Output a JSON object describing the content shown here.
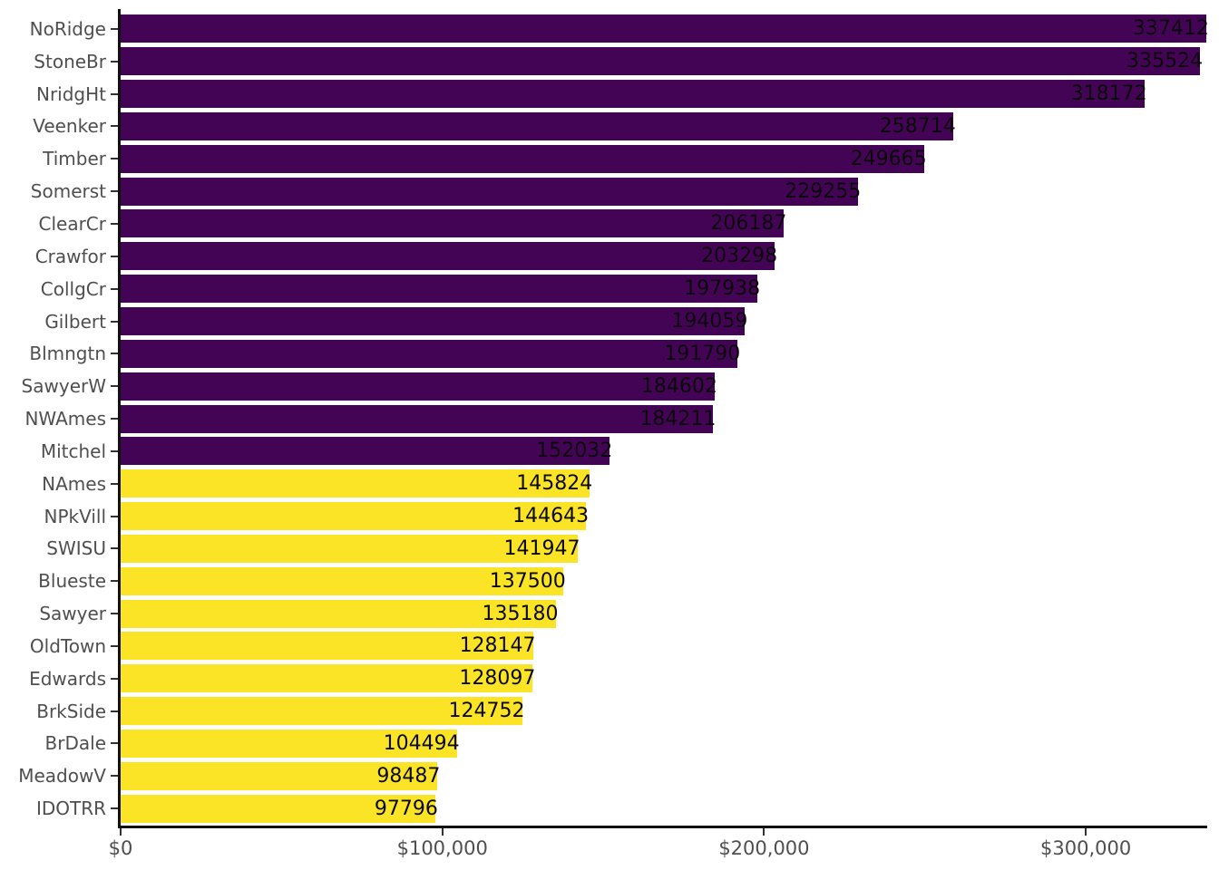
{
  "chart_data": {
    "type": "bar",
    "orientation": "horizontal",
    "title": "",
    "xlabel": "",
    "ylabel": "",
    "categories": [
      "NoRidge",
      "StoneBr",
      "NridgHt",
      "Veenker",
      "Timber",
      "Somerst",
      "ClearCr",
      "Crawfor",
      "CollgCr",
      "Gilbert",
      "Blmngtn",
      "SawyerW",
      "NWAmes",
      "Mitchel",
      "NAmes",
      "NPkVill",
      "SWISU",
      "Blueste",
      "Sawyer",
      "OldTown",
      "Edwards",
      "BrkSide",
      "BrDale",
      "MeadowV",
      "IDOTRR"
    ],
    "values": [
      337412,
      335524,
      318172,
      258714,
      249665,
      229255,
      206187,
      203298,
      197938,
      194059,
      191790,
      184602,
      184211,
      152032,
      145824,
      144643,
      141947,
      137500,
      135180,
      128147,
      128097,
      124752,
      104494,
      98487,
      97796
    ],
    "x_ticks": [
      {
        "label": "$0",
        "value": 0
      },
      {
        "label": "$100,000",
        "value": 100000
      },
      {
        "label": "$200,000",
        "value": 200000
      },
      {
        "label": "$300,000",
        "value": 300000
      }
    ],
    "xlim": [
      0,
      341400
    ],
    "grid": false,
    "legend": null,
    "color_threshold": 150000,
    "colors": {
      "above_threshold": "#440456",
      "below_threshold": "#FBE426",
      "value_label": "#0a0a0a",
      "axis_text": "#4f4f4f",
      "spine": "#111111",
      "background": "#ffffff"
    }
  }
}
